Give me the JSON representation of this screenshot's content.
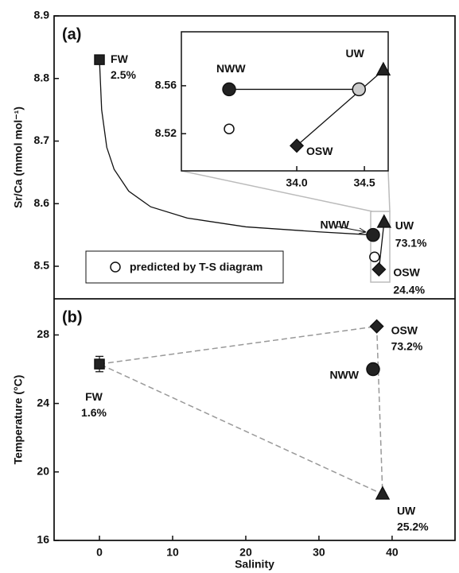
{
  "chart_data": [
    {
      "type": "scatter",
      "panel_label": "(a)",
      "ylabel": "Sr/Ca (mmol mol⁻¹)",
      "xlim": [
        -6.2,
        48.6
      ],
      "ylim": [
        8.448,
        8.9
      ],
      "yticks": [
        8.5,
        8.6,
        8.7,
        8.8,
        8.9
      ],
      "lines": [
        {
          "x": [
            0,
            0.3,
            1,
            2,
            4,
            7,
            12,
            20,
            30,
            37.4
          ],
          "values": [
            8.83,
            8.75,
            8.69,
            8.655,
            8.62,
            8.595,
            8.577,
            8.563,
            8.555,
            8.55
          ]
        },
        {
          "x": [
            38.2,
            38.9
          ],
          "values": [
            8.495,
            8.57
          ]
        }
      ],
      "series": [
        {
          "name": "FW",
          "label": "2.5%",
          "marker": "square",
          "color": "#222222",
          "x": [
            0
          ],
          "values": [
            8.83
          ]
        },
        {
          "name": "NWW",
          "marker": "circle",
          "color": "#222222",
          "x": [
            37.4
          ],
          "values": [
            8.55
          ]
        },
        {
          "name": "UW",
          "label": "73.1%",
          "marker": "triangle",
          "color": "#222222",
          "x": [
            38.9
          ],
          "values": [
            8.57
          ]
        },
        {
          "name": "OSW",
          "label": "24.4%",
          "marker": "diamond",
          "color": "#222222",
          "x": [
            38.2
          ],
          "values": [
            8.495
          ]
        },
        {
          "name": "predicted by T-S diagram",
          "marker": "small-circle",
          "color": "#ffffff",
          "x": [
            37.6
          ],
          "values": [
            8.515
          ]
        }
      ]
    },
    {
      "type": "scatter",
      "xlim": [
        33.147,
        34.676
      ],
      "ylim": [
        8.489,
        8.605
      ],
      "yticks": [
        8.52,
        8.56
      ],
      "xticks": [
        {
          "value": 34.0,
          "label": "34.0"
        },
        34.5
      ],
      "lines": [
        {
          "x": [
            33.5,
            34.46
          ],
          "values": [
            8.557,
            8.557
          ]
        },
        {
          "x": [
            34.0,
            34.64
          ],
          "values": [
            8.51,
            8.573
          ]
        }
      ],
      "series": [
        {
          "name": "NWW",
          "marker": "circle",
          "color": "#222222",
          "x": [
            33.5
          ],
          "values": [
            8.557
          ]
        },
        {
          "name": "UW",
          "marker": "triangle",
          "color": "#222222",
          "x": [
            34.64
          ],
          "values": [
            8.573
          ]
        },
        {
          "name": "OSW",
          "marker": "diamond",
          "color": "#222222",
          "x": [
            34.0
          ],
          "values": [
            8.51
          ]
        },
        {
          "marker": "small-circle",
          "color": "#ffffff",
          "x": [
            33.5
          ],
          "values": [
            8.524
          ]
        },
        {
          "marker": "circle",
          "color": "#cccccc",
          "x": [
            34.46
          ],
          "values": [
            8.557
          ]
        }
      ]
    },
    {
      "type": "scatter",
      "panel_label": "(b)",
      "ylabel": "Temperature (°C)",
      "xlabel": "Salinity",
      "xlim": [
        -6.2,
        48.6
      ],
      "ylim": [
        16,
        30.11
      ],
      "yticks": [
        16,
        20,
        24,
        28
      ],
      "xticks": [
        0,
        10,
        20,
        30,
        40
      ],
      "lines": [
        {
          "x": [
            0,
            37.9,
            38.7,
            0
          ],
          "values": [
            26.3,
            28.5,
            18.7,
            26.3
          ],
          "dashed": true
        }
      ],
      "series": [
        {
          "name": "FW",
          "label": "1.6%",
          "marker": "square",
          "color": "#222222",
          "x": [
            0
          ],
          "values": [
            26.3
          ],
          "errors": [
            0.45
          ]
        },
        {
          "name": "OSW",
          "label": "73.2%",
          "marker": "diamond",
          "color": "#222222",
          "x": [
            37.9
          ],
          "values": [
            28.5
          ]
        },
        {
          "name": "NWW",
          "marker": "circle",
          "color": "#222222",
          "x": [
            37.4
          ],
          "values": [
            26.0
          ]
        },
        {
          "name": "UW",
          "label": "25.2%",
          "marker": "triangle",
          "color": "#222222",
          "x": [
            38.7
          ],
          "values": [
            18.7
          ]
        }
      ]
    }
  ]
}
